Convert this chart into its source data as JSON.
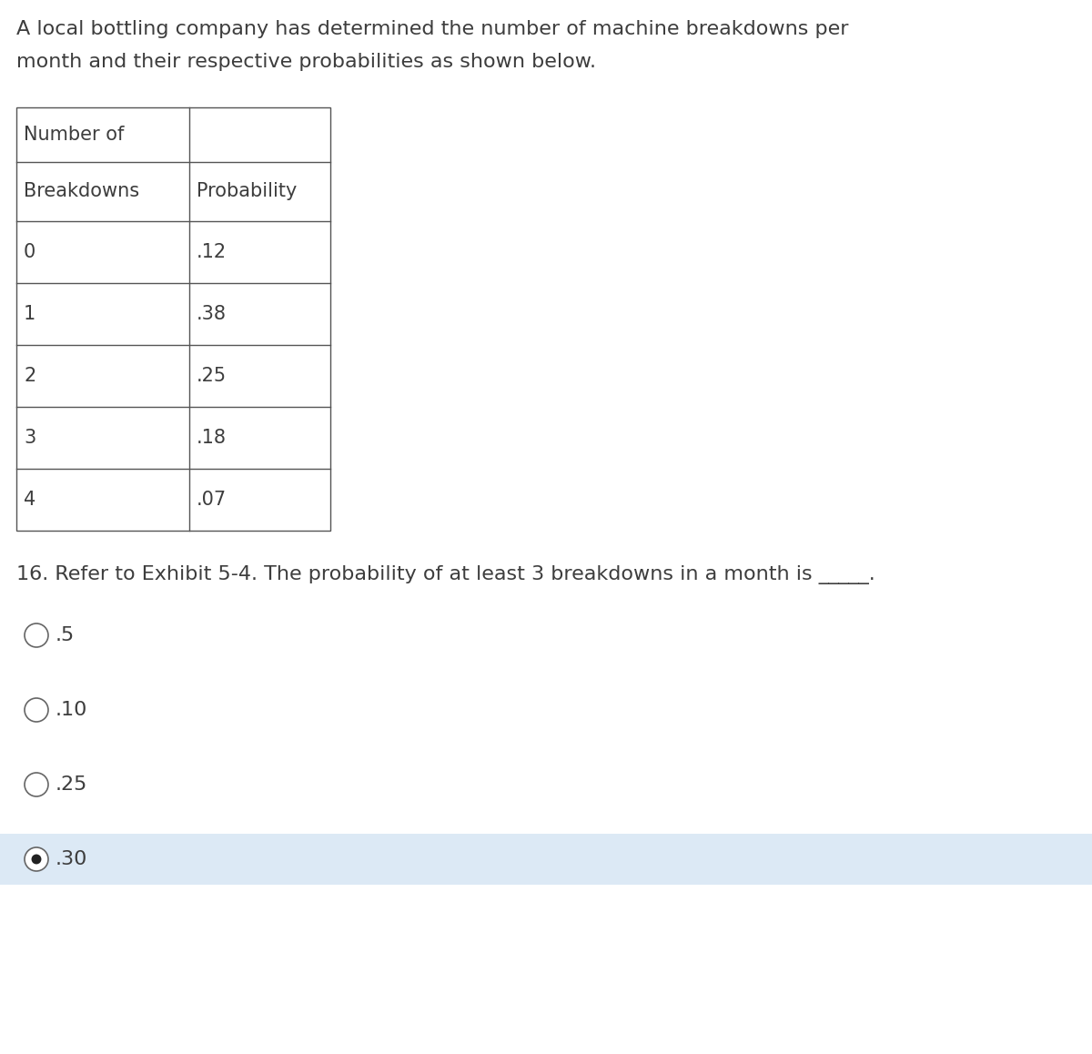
{
  "title_line1": "A local bottling company has determined the number of machine breakdowns per",
  "title_line2": "month and their respective probabilities as shown below.",
  "table_data": [
    [
      "0",
      ".12"
    ],
    [
      "1",
      ".38"
    ],
    [
      "2",
      ".25"
    ],
    [
      "3",
      ".18"
    ],
    [
      "4",
      ".07"
    ]
  ],
  "question": "16. Refer to Exhibit 5-4. The probability of at least 3 breakdowns in a month is _____.",
  "choices": [
    ".5",
    ".10",
    ".25",
    ".30"
  ],
  "selected_index": 3,
  "bg_color": "#ffffff",
  "selected_bg_color": "#dce9f5",
  "text_color": "#3d3d3d",
  "table_border_color": "#555555",
  "font_size_title": 16,
  "font_size_table": 15,
  "font_size_question": 16,
  "font_size_choices": 16
}
